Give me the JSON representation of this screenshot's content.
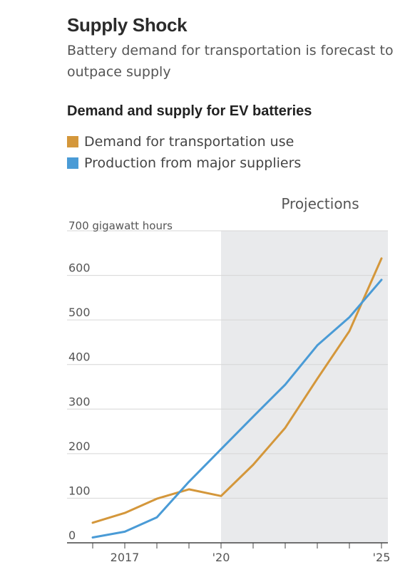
{
  "chart_data": {
    "type": "line",
    "title": "Supply Shock",
    "subtitle": "Battery demand for transportation is forecast to outpace supply",
    "chart_heading": "Demand and supply for EV batteries",
    "ylabel": "gigawatt hours",
    "ylim": [
      0,
      700
    ],
    "y_ticks": [
      {
        "value": 0,
        "label": "0"
      },
      {
        "value": 100,
        "label": "100"
      },
      {
        "value": 200,
        "label": "200"
      },
      {
        "value": 300,
        "label": "300"
      },
      {
        "value": 400,
        "label": "400"
      },
      {
        "value": 500,
        "label": "500"
      },
      {
        "value": 600,
        "label": "600"
      },
      {
        "value": 700,
        "label": "700 gigawatt hours"
      }
    ],
    "x": [
      2016,
      2017,
      2018,
      2019,
      2020,
      2021,
      2022,
      2023,
      2024,
      2025
    ],
    "xlim": [
      2015.2,
      2025.2
    ],
    "x_ticks": [
      2016,
      2017,
      2018,
      2019,
      2020,
      2021,
      2022,
      2023,
      2024,
      2025
    ],
    "x_tick_labels": [
      {
        "value": 2017,
        "label": "2017"
      },
      {
        "value": 2020,
        "label": "'20"
      },
      {
        "value": 2025,
        "label": "'25"
      }
    ],
    "projection": {
      "label": "Projections",
      "from": 2020,
      "to": 2025.2
    },
    "grid": true,
    "legend_position": "top-left",
    "series": [
      {
        "name": "Demand for transportation use",
        "color": "#d4973b",
        "values": [
          45,
          67,
          99,
          120,
          105,
          175,
          258,
          368,
          475,
          638
        ]
      },
      {
        "name": "Production from major suppliers",
        "color": "#4a9bd6",
        "values": [
          12,
          25,
          57,
          137,
          210,
          283,
          355,
          443,
          506,
          590
        ]
      }
    ]
  }
}
